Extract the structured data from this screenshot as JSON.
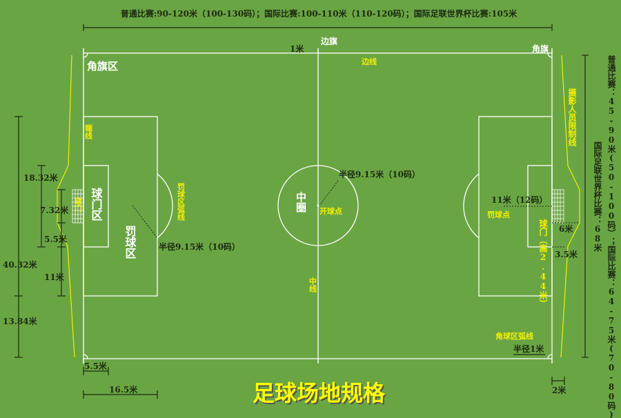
{
  "colors": {
    "field": "#6aa544",
    "lines": "#ffffff",
    "labels_yellow": "#f5f000",
    "dimensions": "#1c2a10"
  },
  "title": "足球场地规格",
  "length_spec": "普通比赛:90-120米（100-130码）；国际比赛:100-110米（110-120码）；国际足联世界杯比赛:105米",
  "width_spec_1": "普通比赛：45-90米(50-100码）；国际比赛：64-75米(70-80码)",
  "width_spec_2": "国际足联世界杯比赛：68米",
  "labels": {
    "corner_flag_area": "角旗区",
    "side_flag": "边旗",
    "corner_flag": "角旗",
    "one_meter": "1米",
    "touchline": "边线",
    "goal_line": "端线",
    "goal_left": "球门",
    "goal_area": "球门区",
    "penalty_area": "罚球区",
    "penalty_arc": "罚球区弧线",
    "arc_radius": "半径9.15米（10码）",
    "center_circle": "中圈",
    "center_radius": "半径9.15米（10码）",
    "kickoff_spot": "开球点",
    "halfway_line": "中线",
    "penalty_spot": "罚球点",
    "penalty_distance": "11米（12码）",
    "goal_right": "球门（高2.44米）",
    "photographer_line": "摄影人员限制线",
    "six_m": "6米",
    "three_five_m": "3.5米",
    "corner_arc": "角球区弧线",
    "corner_radius": "半径1米",
    "two_m": "2米"
  },
  "dimensions": {
    "d18_32": "18.32米",
    "d7_32": "7.32米",
    "d5_5_v": "5.5米",
    "d40_32": "40.32米",
    "d11": "11米",
    "d13_84": "13.84米",
    "d5_5_h": "5.5米",
    "d16_5": "16.5米"
  }
}
